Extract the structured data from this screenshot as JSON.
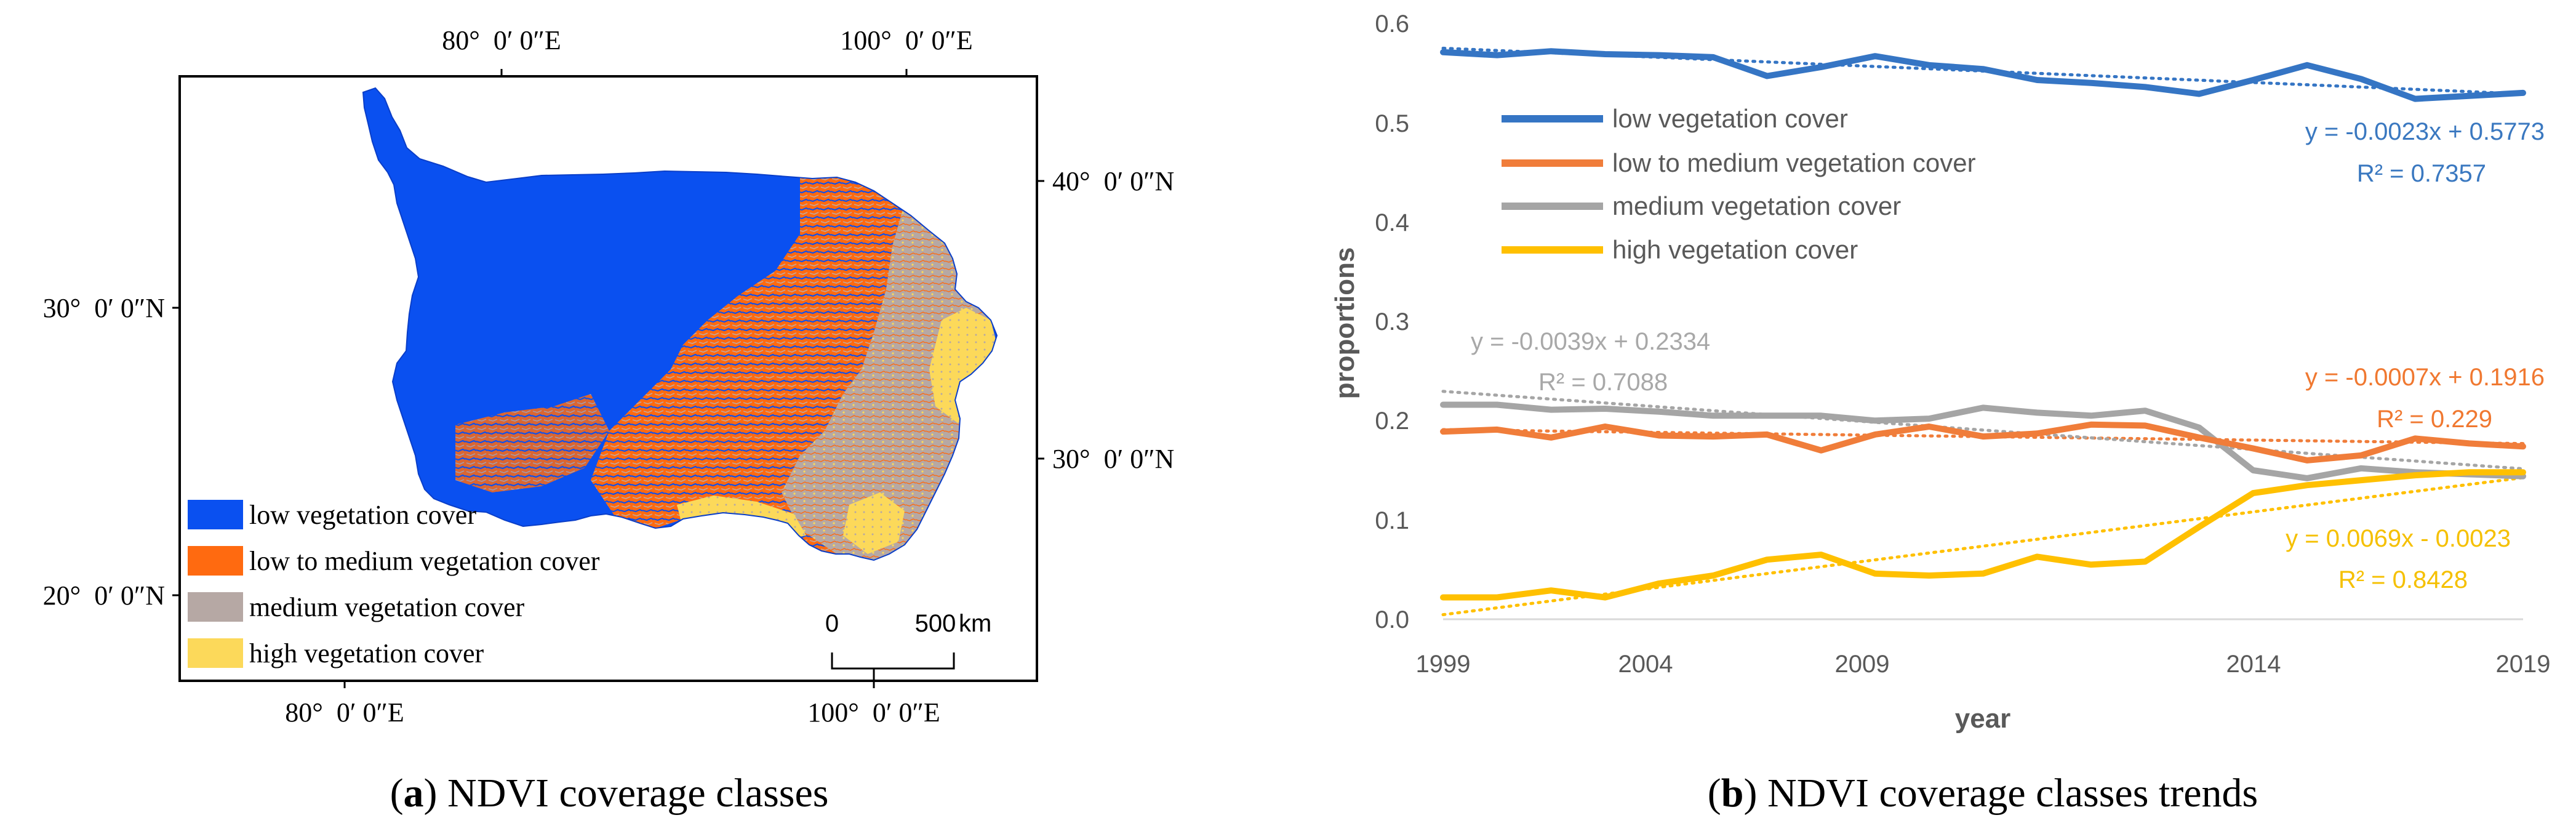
{
  "panel_a": {
    "caption_letter": "a",
    "caption_text": " NDVI coverage classes",
    "top_lon_labels": [
      "80°  0′ 0″E",
      "100°  0′ 0″E"
    ],
    "bottom_lon_labels": [
      "80°  0′ 0″E",
      "100°  0′ 0″E"
    ],
    "left_lat_labels": [
      "30°  0′ 0″N",
      "20°  0′ 0″N"
    ],
    "right_lat_labels": [
      "40°  0′ 0″N",
      "30°  0′ 0″N"
    ],
    "legend": [
      {
        "label": "low vegetation cover",
        "color": "#0a50f0"
      },
      {
        "label": "low to medium vegetation cover",
        "color": "#ff6a10"
      },
      {
        "label": "medium vegetation cover",
        "color": "#b6a8a4"
      },
      {
        "label": "high vegetation cover",
        "color": "#fcd95a"
      }
    ],
    "scalebar": {
      "start": "0",
      "end": "500",
      "unit": "km"
    }
  },
  "panel_b": {
    "caption_letter": "b",
    "caption_text": " NDVI coverage classes trends",
    "equations": [
      {
        "text": "y = -0.0023x + 0.5773",
        "color": "#3a78c0"
      },
      {
        "text": "R² = 0.7357",
        "color": "#3a78c0"
      },
      {
        "text": "y = -0.0039x + 0.2334",
        "color": "#a8a8a8"
      },
      {
        "text": "R² = 0.7088",
        "color": "#a8a8a8"
      },
      {
        "text": "y = -0.0007x + 0.1916",
        "color": "#f07830"
      },
      {
        "text": "R² = 0.229",
        "color": "#f07830"
      },
      {
        "text": "y = 0.0069x - 0.0023",
        "color": "#f5c000"
      },
      {
        "text": "R² = 0.8428",
        "color": "#f5c000"
      }
    ]
  },
  "chart_data": {
    "type": "line",
    "title": "",
    "xlabel": "year",
    "ylabel": "proportions",
    "xlim": [
      1999,
      2019
    ],
    "ylim": [
      0,
      0.6
    ],
    "x_ticks": [
      1999,
      2004,
      2009,
      2014,
      2019
    ],
    "y_ticks": [
      0,
      0.1,
      0.2,
      0.3,
      0.4,
      0.5,
      0.6
    ],
    "y_tick_labels": [
      "0.0",
      "0.1",
      "0.2",
      "0.3",
      "0.4",
      "0.5",
      "0.6"
    ],
    "x_tick_labels": [
      "1999",
      "2004",
      "2009",
      "2014",
      "2019"
    ],
    "grid": false,
    "legend_position": "top-left",
    "x": [
      1999,
      2000,
      2001,
      2002,
      2003,
      2004,
      2005,
      2006,
      2007,
      2008,
      2009,
      2010,
      2011,
      2012,
      2013,
      2014,
      2015,
      2016,
      2017,
      2018,
      2019
    ],
    "series": [
      {
        "name": "low vegetation cover",
        "color": "#3575c4",
        "values": [
          0.571,
          0.568,
          0.572,
          0.569,
          0.568,
          0.566,
          0.547,
          0.556,
          0.567,
          0.558,
          0.554,
          0.543,
          0.54,
          0.536,
          0.529,
          0.543,
          0.558,
          0.544,
          0.524,
          0.527,
          0.53
        ],
        "trend": {
          "slope": -0.0023,
          "intercept": 0.5773
        }
      },
      {
        "name": "low to medium vegetation cover",
        "color": "#f07d3a",
        "values": [
          0.189,
          0.191,
          0.183,
          0.194,
          0.185,
          0.184,
          0.186,
          0.17,
          0.186,
          0.194,
          0.184,
          0.187,
          0.196,
          0.195,
          0.183,
          0.172,
          0.16,
          0.165,
          0.182,
          0.177,
          0.174
        ],
        "trend": {
          "slope": -0.0007,
          "intercept": 0.1916
        }
      },
      {
        "name": "medium vegetation cover",
        "color": "#a5a5a5",
        "values": [
          0.216,
          0.216,
          0.211,
          0.212,
          0.209,
          0.205,
          0.205,
          0.205,
          0.2,
          0.202,
          0.213,
          0.208,
          0.205,
          0.21,
          0.193,
          0.15,
          0.142,
          0.152,
          0.148,
          0.146,
          0.144
        ],
        "trend": {
          "slope": -0.0039,
          "intercept": 0.2334
        }
      },
      {
        "name": "high vegetation cover",
        "color": "#ffc000",
        "values": [
          0.022,
          0.022,
          0.029,
          0.022,
          0.036,
          0.044,
          0.06,
          0.065,
          0.046,
          0.044,
          0.046,
          0.063,
          0.055,
          0.058,
          0.093,
          0.127,
          0.135,
          0.14,
          0.145,
          0.148,
          0.148
        ],
        "trend": {
          "slope": 0.0069,
          "intercept": -0.0023
        }
      }
    ]
  }
}
